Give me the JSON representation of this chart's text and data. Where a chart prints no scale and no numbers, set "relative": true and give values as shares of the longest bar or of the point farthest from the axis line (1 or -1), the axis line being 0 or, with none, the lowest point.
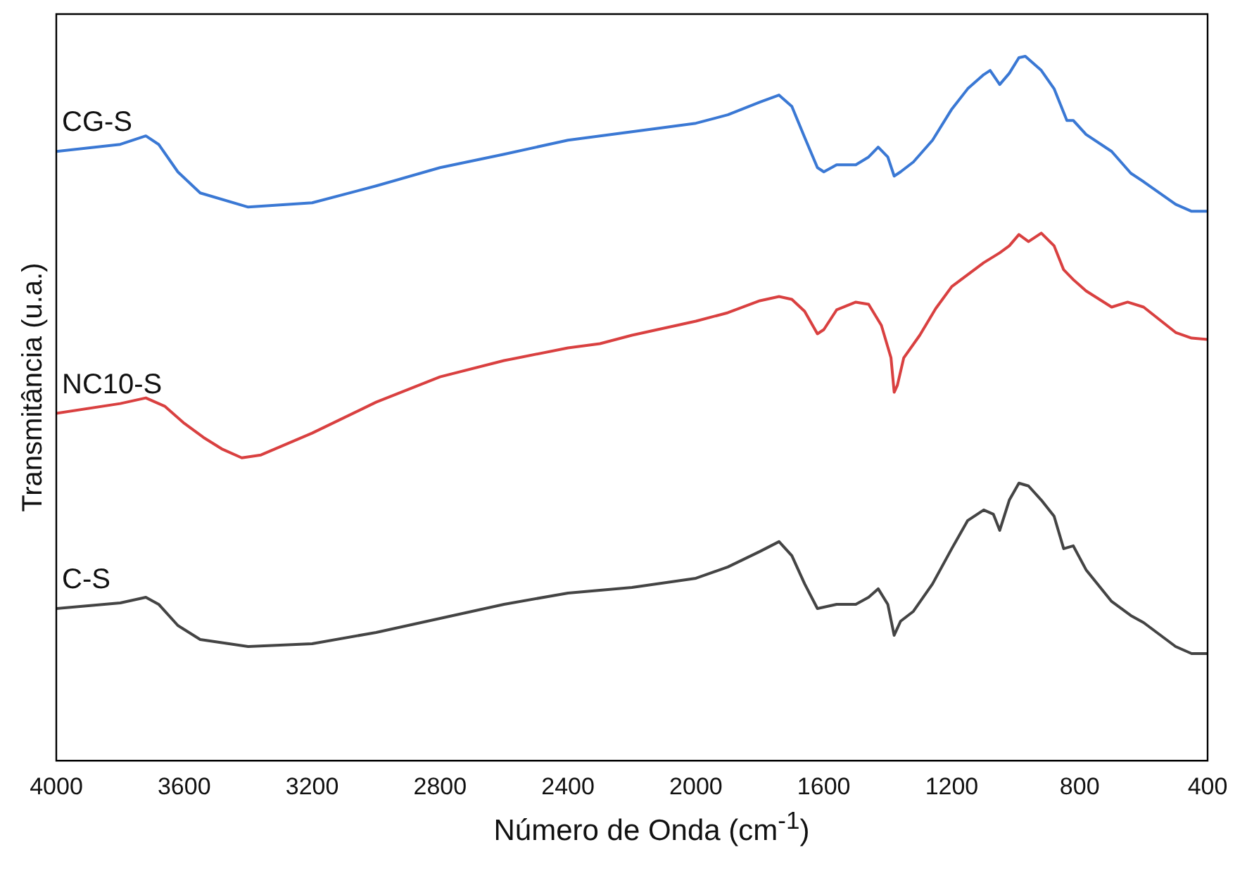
{
  "chart_data": {
    "type": "line",
    "relative": true,
    "xlabel": "Número de Onda (cm$^{-1}$)",
    "ylabel": "Transmitância (u.a.)",
    "xlim": [
      4000,
      400
    ],
    "xticks": [
      4000,
      3600,
      3200,
      2800,
      2400,
      2000,
      1600,
      1200,
      800,
      400
    ],
    "grid": false,
    "legend": false,
    "tick_labels": "x",
    "marker": "none",
    "line_style": "solid",
    "series": [
      {
        "name": "CG-S",
        "color": "#3a78d4",
        "x": [
          4000,
          3800,
          3720,
          3680,
          3620,
          3550,
          3400,
          3200,
          3000,
          2800,
          2600,
          2400,
          2200,
          2000,
          1900,
          1800,
          1740,
          1700,
          1660,
          1620,
          1600,
          1560,
          1500,
          1460,
          1430,
          1400,
          1380,
          1360,
          1320,
          1260,
          1200,
          1150,
          1100,
          1080,
          1050,
          1020,
          990,
          970,
          920,
          880,
          840,
          820,
          780,
          700,
          640,
          600,
          500,
          450,
          400
        ],
        "values": [
          0.865,
          0.875,
          0.887,
          0.875,
          0.836,
          0.806,
          0.786,
          0.792,
          0.816,
          0.842,
          0.861,
          0.881,
          0.893,
          0.905,
          0.917,
          0.935,
          0.945,
          0.929,
          0.885,
          0.842,
          0.836,
          0.846,
          0.846,
          0.857,
          0.871,
          0.857,
          0.83,
          0.836,
          0.85,
          0.881,
          0.925,
          0.954,
          0.974,
          0.98,
          0.96,
          0.976,
          0.998,
          1,
          0.98,
          0.954,
          0.909,
          0.909,
          0.889,
          0.865,
          0.834,
          0.822,
          0.79,
          0.78,
          0.78
        ]
      },
      {
        "name": "NC10-S",
        "color": "#d94040",
        "x": [
          4000,
          3800,
          3720,
          3660,
          3600,
          3540,
          3480,
          3420,
          3360,
          3200,
          3000,
          2800,
          2600,
          2400,
          2300,
          2200,
          2000,
          1900,
          1800,
          1740,
          1700,
          1660,
          1620,
          1600,
          1560,
          1500,
          1460,
          1420,
          1390,
          1380,
          1370,
          1350,
          1300,
          1250,
          1200,
          1100,
          1050,
          1020,
          990,
          960,
          920,
          880,
          850,
          820,
          780,
          700,
          650,
          600,
          500,
          450,
          400
        ],
        "values": [
          0.493,
          0.507,
          0.515,
          0.503,
          0.479,
          0.459,
          0.442,
          0.43,
          0.434,
          0.465,
          0.509,
          0.545,
          0.568,
          0.586,
          0.592,
          0.604,
          0.624,
          0.636,
          0.653,
          0.659,
          0.655,
          0.638,
          0.606,
          0.612,
          0.64,
          0.651,
          0.648,
          0.618,
          0.572,
          0.523,
          0.533,
          0.572,
          0.604,
          0.642,
          0.673,
          0.707,
          0.721,
          0.731,
          0.747,
          0.737,
          0.749,
          0.731,
          0.697,
          0.683,
          0.667,
          0.644,
          0.651,
          0.644,
          0.608,
          0.6,
          0.598
        ]
      },
      {
        "name": "C-S",
        "color": "#444444",
        "x": [
          4000,
          3800,
          3720,
          3680,
          3620,
          3550,
          3400,
          3200,
          3000,
          2800,
          2600,
          2400,
          2200,
          2000,
          1900,
          1800,
          1740,
          1700,
          1660,
          1620,
          1560,
          1500,
          1460,
          1430,
          1400,
          1380,
          1360,
          1320,
          1260,
          1200,
          1150,
          1100,
          1070,
          1050,
          1020,
          990,
          960,
          920,
          880,
          850,
          820,
          780,
          700,
          640,
          600,
          500,
          450,
          400
        ],
        "values": [
          0.216,
          0.224,
          0.232,
          0.222,
          0.192,
          0.172,
          0.162,
          0.166,
          0.182,
          0.202,
          0.222,
          0.238,
          0.246,
          0.259,
          0.275,
          0.297,
          0.311,
          0.291,
          0.251,
          0.216,
          0.222,
          0.222,
          0.232,
          0.244,
          0.222,
          0.178,
          0.198,
          0.212,
          0.251,
          0.301,
          0.341,
          0.356,
          0.35,
          0.327,
          0.37,
          0.394,
          0.39,
          0.37,
          0.347,
          0.301,
          0.305,
          0.271,
          0.226,
          0.206,
          0.196,
          0.162,
          0.152,
          0.152
        ]
      }
    ]
  }
}
